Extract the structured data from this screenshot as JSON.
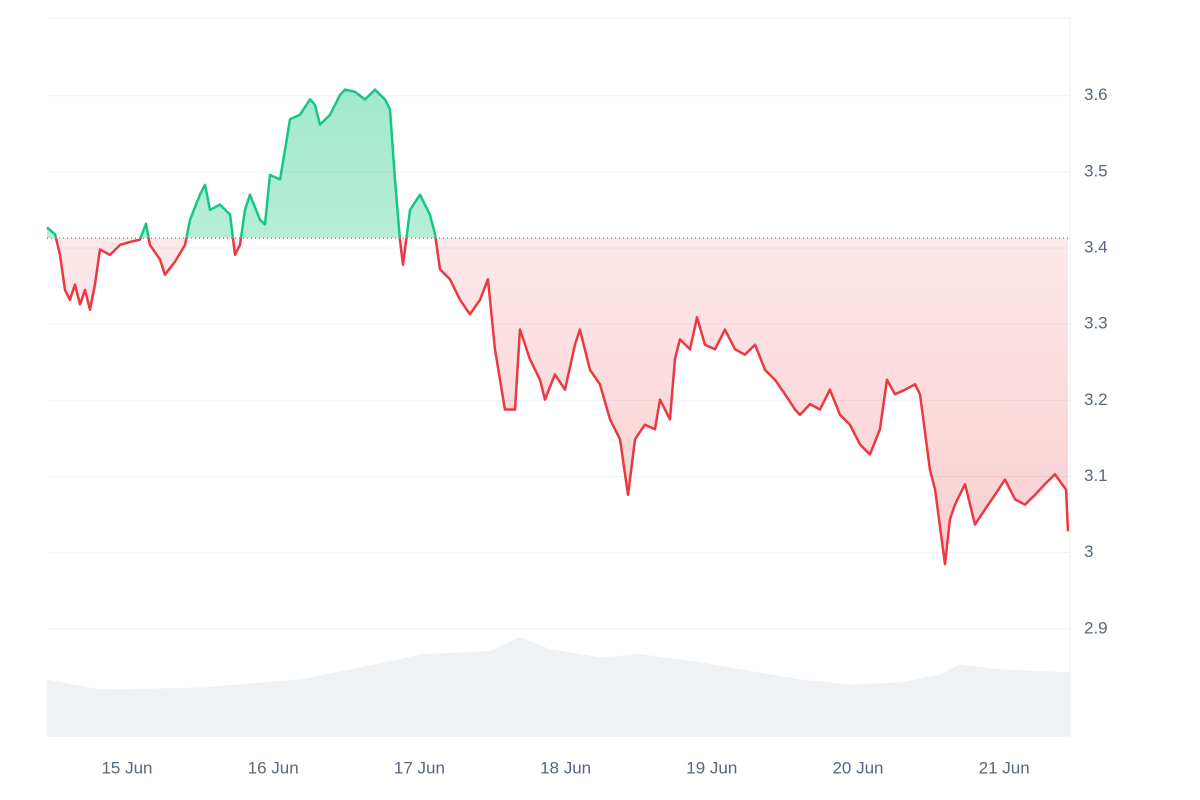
{
  "chart_data": {
    "type": "line",
    "x": [
      14.453,
      14.508,
      14.542,
      14.576,
      14.61,
      14.644,
      14.679,
      14.713,
      14.747,
      14.781,
      14.815,
      14.884,
      14.952,
      15.021,
      15.089,
      15.13,
      15.157,
      15.226,
      15.26,
      15.328,
      15.397,
      15.431,
      15.499,
      15.534,
      15.568,
      15.636,
      15.705,
      15.739,
      15.773,
      15.807,
      15.841,
      15.91,
      15.944,
      15.978,
      16.047,
      16.081,
      16.115,
      16.183,
      16.252,
      16.286,
      16.32,
      16.389,
      16.457,
      16.491,
      16.56,
      16.628,
      16.696,
      16.765,
      16.799,
      16.833,
      16.867,
      16.888,
      16.936,
      17.004,
      17.072,
      17.107,
      17.141,
      17.209,
      17.278,
      17.346,
      17.415,
      17.469,
      17.517,
      17.585,
      17.654,
      17.688,
      17.756,
      17.825,
      17.859,
      17.927,
      17.996,
      18.064,
      18.098,
      18.167,
      18.235,
      18.304,
      18.372,
      18.427,
      18.475,
      18.543,
      18.611,
      18.646,
      18.714,
      18.748,
      18.782,
      18.851,
      18.899,
      18.953,
      19.022,
      19.09,
      19.159,
      19.227,
      19.296,
      19.364,
      19.432,
      19.501,
      19.569,
      19.603,
      19.672,
      19.74,
      19.808,
      19.877,
      19.945,
      20.014,
      20.082,
      20.15,
      20.198,
      20.253,
      20.322,
      20.39,
      20.424,
      20.492,
      20.527,
      20.595,
      20.629,
      20.663,
      20.732,
      20.8,
      20.869,
      20.937,
      21.005,
      21.074,
      21.142,
      21.211,
      21.279,
      21.347,
      21.395,
      21.423,
      21.436
    ],
    "values": [
      3.427,
      3.418,
      3.391,
      3.345,
      3.332,
      3.352,
      3.326,
      3.345,
      3.319,
      3.352,
      3.398,
      3.391,
      3.404,
      3.408,
      3.411,
      3.432,
      3.404,
      3.385,
      3.365,
      3.382,
      3.404,
      3.437,
      3.47,
      3.483,
      3.45,
      3.457,
      3.444,
      3.391,
      3.404,
      3.45,
      3.47,
      3.437,
      3.431,
      3.496,
      3.49,
      3.529,
      3.569,
      3.575,
      3.595,
      3.588,
      3.562,
      3.575,
      3.601,
      3.608,
      3.605,
      3.595,
      3.608,
      3.595,
      3.582,
      3.49,
      3.411,
      3.378,
      3.45,
      3.47,
      3.444,
      3.418,
      3.372,
      3.359,
      3.332,
      3.313,
      3.332,
      3.359,
      3.267,
      3.188,
      3.188,
      3.293,
      3.254,
      3.227,
      3.201,
      3.234,
      3.214,
      3.273,
      3.293,
      3.24,
      3.221,
      3.175,
      3.149,
      3.076,
      3.149,
      3.168,
      3.162,
      3.201,
      3.175,
      3.254,
      3.28,
      3.267,
      3.309,
      3.273,
      3.267,
      3.293,
      3.267,
      3.26,
      3.273,
      3.24,
      3.227,
      3.208,
      3.188,
      3.181,
      3.195,
      3.188,
      3.214,
      3.181,
      3.168,
      3.142,
      3.129,
      3.162,
      3.227,
      3.208,
      3.214,
      3.221,
      3.208,
      3.109,
      3.083,
      2.985,
      3.044,
      3.063,
      3.09,
      3.037,
      3.057,
      3.076,
      3.096,
      3.07,
      3.063,
      3.076,
      3.09,
      3.103,
      3.09,
      3.083,
      3.028
    ],
    "baseline": 3.413,
    "up_color": "#16c784",
    "down_color": "#ea3943",
    "volume": {
      "x": [
        14.453,
        14.815,
        15.499,
        16.183,
        16.867,
        17.004,
        17.483,
        17.688,
        17.893,
        18.235,
        18.509,
        18.919,
        19.603,
        19.945,
        20.287,
        20.561,
        20.698,
        20.971,
        21.45
      ],
      "values": [
        57,
        47,
        49,
        57,
        77,
        82,
        85,
        99,
        87,
        79,
        82,
        74,
        57,
        52,
        54,
        62,
        72,
        67,
        64
      ],
      "color": "#eff2f5"
    },
    "xlim": [
      14.453,
      21.45
    ],
    "xticks": [
      {
        "value": 15,
        "label": "15 Jun"
      },
      {
        "value": 16,
        "label": "16 Jun"
      },
      {
        "value": 17,
        "label": "17 Jun"
      },
      {
        "value": 18,
        "label": "18 Jun"
      },
      {
        "value": 19,
        "label": "19 Jun"
      },
      {
        "value": 20,
        "label": "20 Jun"
      },
      {
        "value": 21,
        "label": "21 Jun"
      }
    ],
    "ylim": [
      2.758,
      3.702
    ],
    "yticks": [
      2.9,
      3.0,
      3.1,
      3.2,
      3.3,
      3.4,
      3.5,
      3.6
    ],
    "grid": true
  }
}
